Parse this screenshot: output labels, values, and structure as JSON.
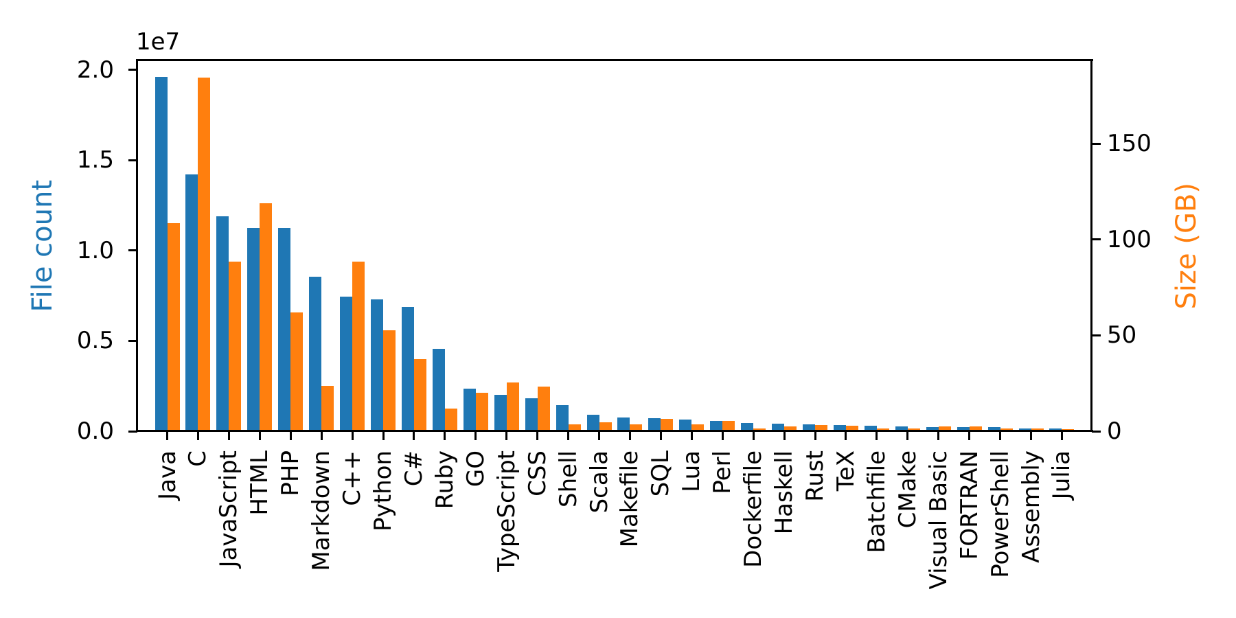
{
  "chart_data": {
    "type": "bar",
    "title": "",
    "grid": false,
    "legend_position": "none",
    "background_color": "#ffffff",
    "categories": [
      "Java",
      "C",
      "JavaScript",
      "HTML",
      "PHP",
      "Markdown",
      "C++",
      "Python",
      "C#",
      "Ruby",
      "GO",
      "TypeScript",
      "CSS",
      "Shell",
      "Scala",
      "Makefile",
      "SQL",
      "Lua",
      "Perl",
      "Dockerfile",
      "Haskell",
      "Rust",
      "TeX",
      "Batchfile",
      "CMake",
      "Visual Basic",
      "FORTRAN",
      "PowerShell",
      "Assembly",
      "Julia"
    ],
    "series": [
      {
        "name": "File count",
        "axis": "left",
        "color": "#1f77b4",
        "values": [
          19548190,
          14143113,
          11839883,
          11178557,
          11177610,
          8464626,
          7380520,
          7226626,
          6811652,
          4473331,
          2265436,
          1940406,
          1734406,
          1385648,
          835755,
          679430,
          656671,
          578554,
          497949,
          366505,
          340240,
          322431,
          251015,
          236945,
          175282,
          155652,
          142038,
          136846,
          82905,
          58317
        ]
      },
      {
        "name": "Size (GB)",
        "axis": "right",
        "color": "#ff7f0e",
        "values": [
          107.7,
          183.83,
          87.82,
          118.12,
          61.41,
          23.09,
          87.73,
          52.03,
          36.83,
          10.95,
          19.28,
          24.59,
          22.67,
          3.01,
          3.87,
          2.92,
          5.67,
          2.81,
          4.7,
          0.71,
          1.85,
          2.68,
          2.15,
          0.7,
          0.54,
          1.91,
          1.62,
          0.69,
          0.78,
          0.29
        ]
      }
    ],
    "left_axis": {
      "label": "File count",
      "color": "#1f77b4",
      "offset_text": "1e7",
      "tick_labels": [
        "0.0",
        "0.5",
        "1.0",
        "1.5",
        "2.0"
      ],
      "tick_values": [
        0,
        5000000,
        10000000,
        15000000,
        20000000
      ],
      "range": [
        0,
        20530000
      ]
    },
    "right_axis": {
      "label": "Size (GB)",
      "color": "#ff7f0e",
      "tick_labels": [
        "0",
        "50",
        "100",
        "150"
      ],
      "tick_values": [
        0,
        50,
        100,
        150
      ],
      "range": [
        0,
        193.5
      ]
    },
    "x_axis": {
      "tick_rotation": 90
    }
  }
}
